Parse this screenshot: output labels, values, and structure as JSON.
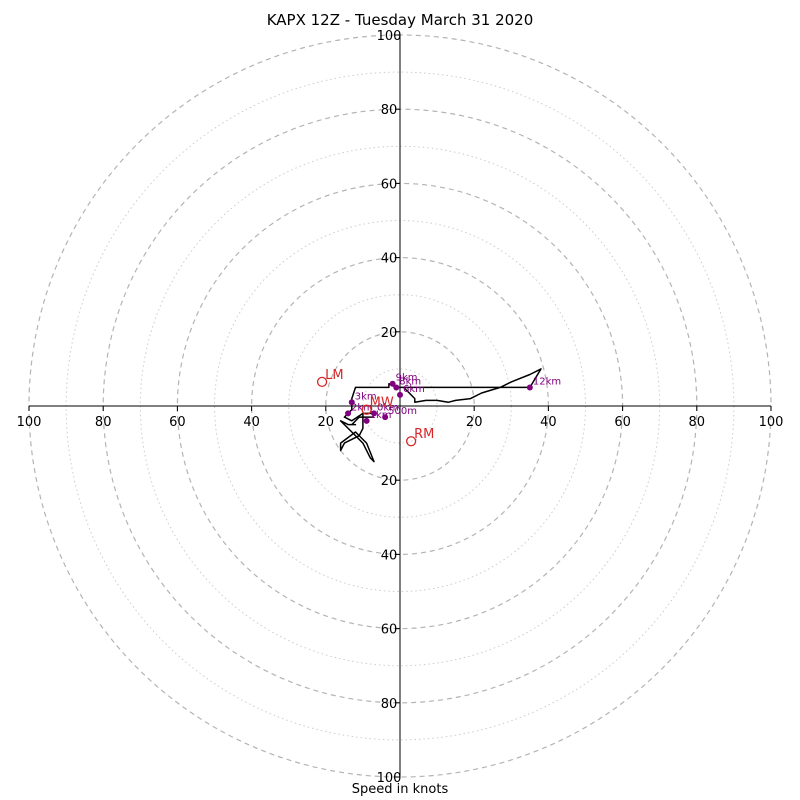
{
  "chart_data": {
    "type": "hodograph",
    "title": "KAPX 12Z - Tuesday March 31 2020",
    "xlabel": "Speed in knots",
    "ylabel": "",
    "xlim": [
      -100,
      100
    ],
    "ylim": [
      -100,
      100
    ],
    "ring_major_step": 20,
    "ring_minor_step": 10,
    "tick_labels": [
      "100",
      "80",
      "60",
      "40",
      "20",
      "20",
      "40",
      "60",
      "80",
      "100"
    ],
    "tick_values": [
      -100,
      -80,
      -60,
      -40,
      -20,
      20,
      40,
      60,
      80,
      100
    ],
    "colors": {
      "trace": "#000000",
      "height_points": "#800080",
      "motion_markers": "#d62728",
      "rings": "#bbbbbb"
    },
    "series": [
      {
        "values_uv": [
          [
            -7,
            -2
          ],
          [
            -10,
            -2
          ],
          [
            -13,
            -4
          ],
          [
            -15,
            -3
          ],
          [
            -13,
            -1
          ],
          [
            -13,
            2
          ],
          [
            -13,
            2
          ],
          [
            -12,
            5
          ],
          [
            -7,
            5
          ],
          [
            -3,
            5
          ],
          [
            -3,
            6
          ],
          [
            -1,
            5
          ],
          [
            -1,
            5
          ],
          [
            1,
            5
          ],
          [
            4,
            2
          ],
          [
            4,
            1
          ],
          [
            7,
            1.5
          ],
          [
            10,
            1.5
          ],
          [
            13,
            1
          ],
          [
            15,
            1.5
          ],
          [
            19,
            2
          ],
          [
            22,
            3.5
          ],
          [
            27,
            5
          ],
          [
            30,
            6.5
          ],
          [
            35,
            8.5
          ],
          [
            38,
            10
          ],
          [
            38,
            10
          ],
          [
            35,
            5
          ],
          [
            1,
            5
          ]
        ]
      },
      {
        "values_uv": [
          [
            -7,
            -3
          ],
          [
            -9,
            -3
          ],
          [
            -11,
            -3
          ],
          [
            -13,
            -5
          ],
          [
            -12,
            -5
          ],
          [
            -14,
            -5
          ],
          [
            -16,
            -4
          ],
          [
            -13,
            -7
          ],
          [
            -10,
            -10
          ],
          [
            -8,
            -14
          ],
          [
            -7,
            -15
          ],
          [
            -9,
            -10
          ],
          [
            -12,
            -7
          ],
          [
            -16,
            -10
          ],
          [
            -16,
            -10
          ],
          [
            -16,
            -12
          ],
          [
            -16,
            -12
          ],
          [
            -15,
            -10
          ],
          [
            -11,
            -8
          ],
          [
            -10,
            -6
          ],
          [
            -10,
            -2
          ]
        ]
      }
    ],
    "height_points": [
      {
        "label": "12km",
        "u": 35,
        "v": 5
      },
      {
        "label": "9km",
        "u": -2,
        "v": 6
      },
      {
        "label": "8km",
        "u": -1,
        "v": 5
      },
      {
        "label": "6km",
        "u": 0,
        "v": 3
      },
      {
        "label": "3km",
        "u": -13,
        "v": 1
      },
      {
        "label": "2km",
        "u": -14,
        "v": -2
      },
      {
        "label": "1km",
        "u": -9,
        "v": -4
      },
      {
        "label": "500m",
        "u": -4,
        "v": -3
      },
      {
        "label": "0km",
        "u": -7,
        "v": -2
      }
    ],
    "motion_markers": [
      {
        "label": "LM",
        "u": -21,
        "v": 6.5
      },
      {
        "label": "RM",
        "u": 3,
        "v": -9.5
      },
      {
        "label": "MW",
        "u": -9,
        "v": -1
      }
    ]
  }
}
